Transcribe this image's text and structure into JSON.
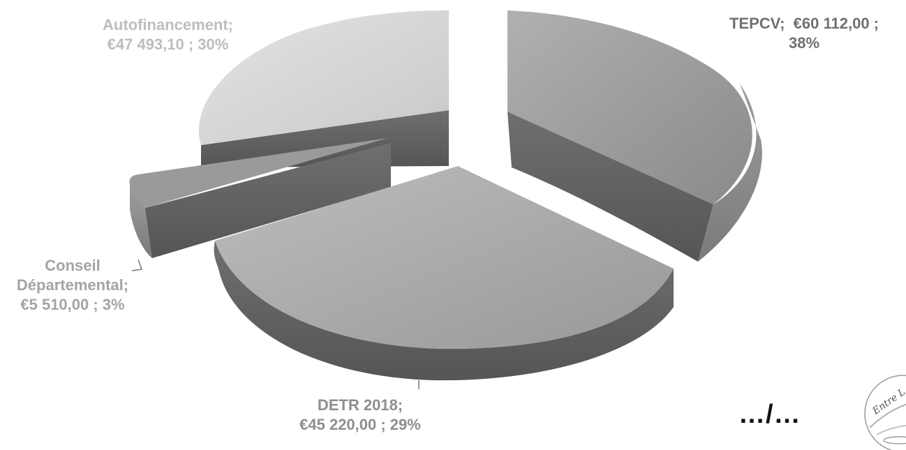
{
  "chart_data": {
    "type": "pie",
    "style": "3d-exploded",
    "title": "",
    "legend": "none",
    "colors": {
      "TEPCV": "#9a9a9a",
      "DETR 2018": "#a8a8a8",
      "Conseil Départemental": "#8f8f8f",
      "Autofinancement": "#d6d6d6"
    },
    "slices": [
      {
        "name": "TEPCV",
        "value": 60112.0,
        "percent": 38,
        "label_line1": "TEPCV;  €60 112,00 ;",
        "label_line2": "38%"
      },
      {
        "name": "DETR 2018",
        "value": 45220.0,
        "percent": 29,
        "label_line1": "DETR 2018;",
        "label_line2": "€45 220,00 ; 29%"
      },
      {
        "name": "Conseil Départemental",
        "value": 5510.0,
        "percent": 3,
        "label_line1": "Conseil",
        "label_line2": "Départemental;",
        "label_line3": "€5 510,00 ; 3%"
      },
      {
        "name": "Autofinancement",
        "value": 47493.1,
        "percent": 30,
        "label_line1": "Autofinancement;",
        "label_line2": "€47 493,10 ; 30%"
      }
    ]
  },
  "footer": {
    "continuation": "…/…",
    "logo_text": "Entre L"
  }
}
